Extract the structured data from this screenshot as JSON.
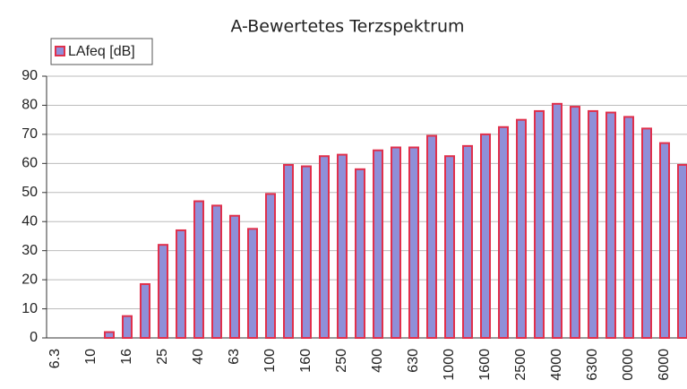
{
  "chart_data": {
    "type": "bar",
    "title": "A-Bewertetes Terzspektrum",
    "categories": [
      "6.3",
      null,
      "10",
      null,
      "16",
      null,
      "25",
      null,
      "40",
      null,
      "63",
      null,
      "100",
      null,
      "160",
      null,
      "250",
      null,
      "400",
      null,
      "630",
      null,
      "1000",
      null,
      "1600",
      null,
      "2500",
      null,
      "4000",
      null,
      "6300",
      null,
      "0000",
      null,
      "6000",
      null
    ],
    "series": [
      {
        "name": "LAfeq [dB]",
        "color": "#8f8fd8",
        "values": [
          0,
          0,
          0,
          2,
          7.5,
          18.5,
          32,
          37,
          47,
          45.5,
          42,
          37.5,
          49.5,
          59.5,
          59,
          62.5,
          63,
          58,
          64.5,
          65.5,
          65.5,
          69.5,
          62.5,
          66,
          70,
          72.5,
          75,
          78,
          80.5,
          79.5,
          78,
          77.5,
          76,
          72,
          67,
          59.5
        ]
      }
    ],
    "ylim": [
      0,
      90
    ],
    "yticks": [
      0,
      10,
      20,
      30,
      40,
      50,
      60,
      70,
      80,
      90
    ],
    "grid": true,
    "legend": "top-left"
  }
}
